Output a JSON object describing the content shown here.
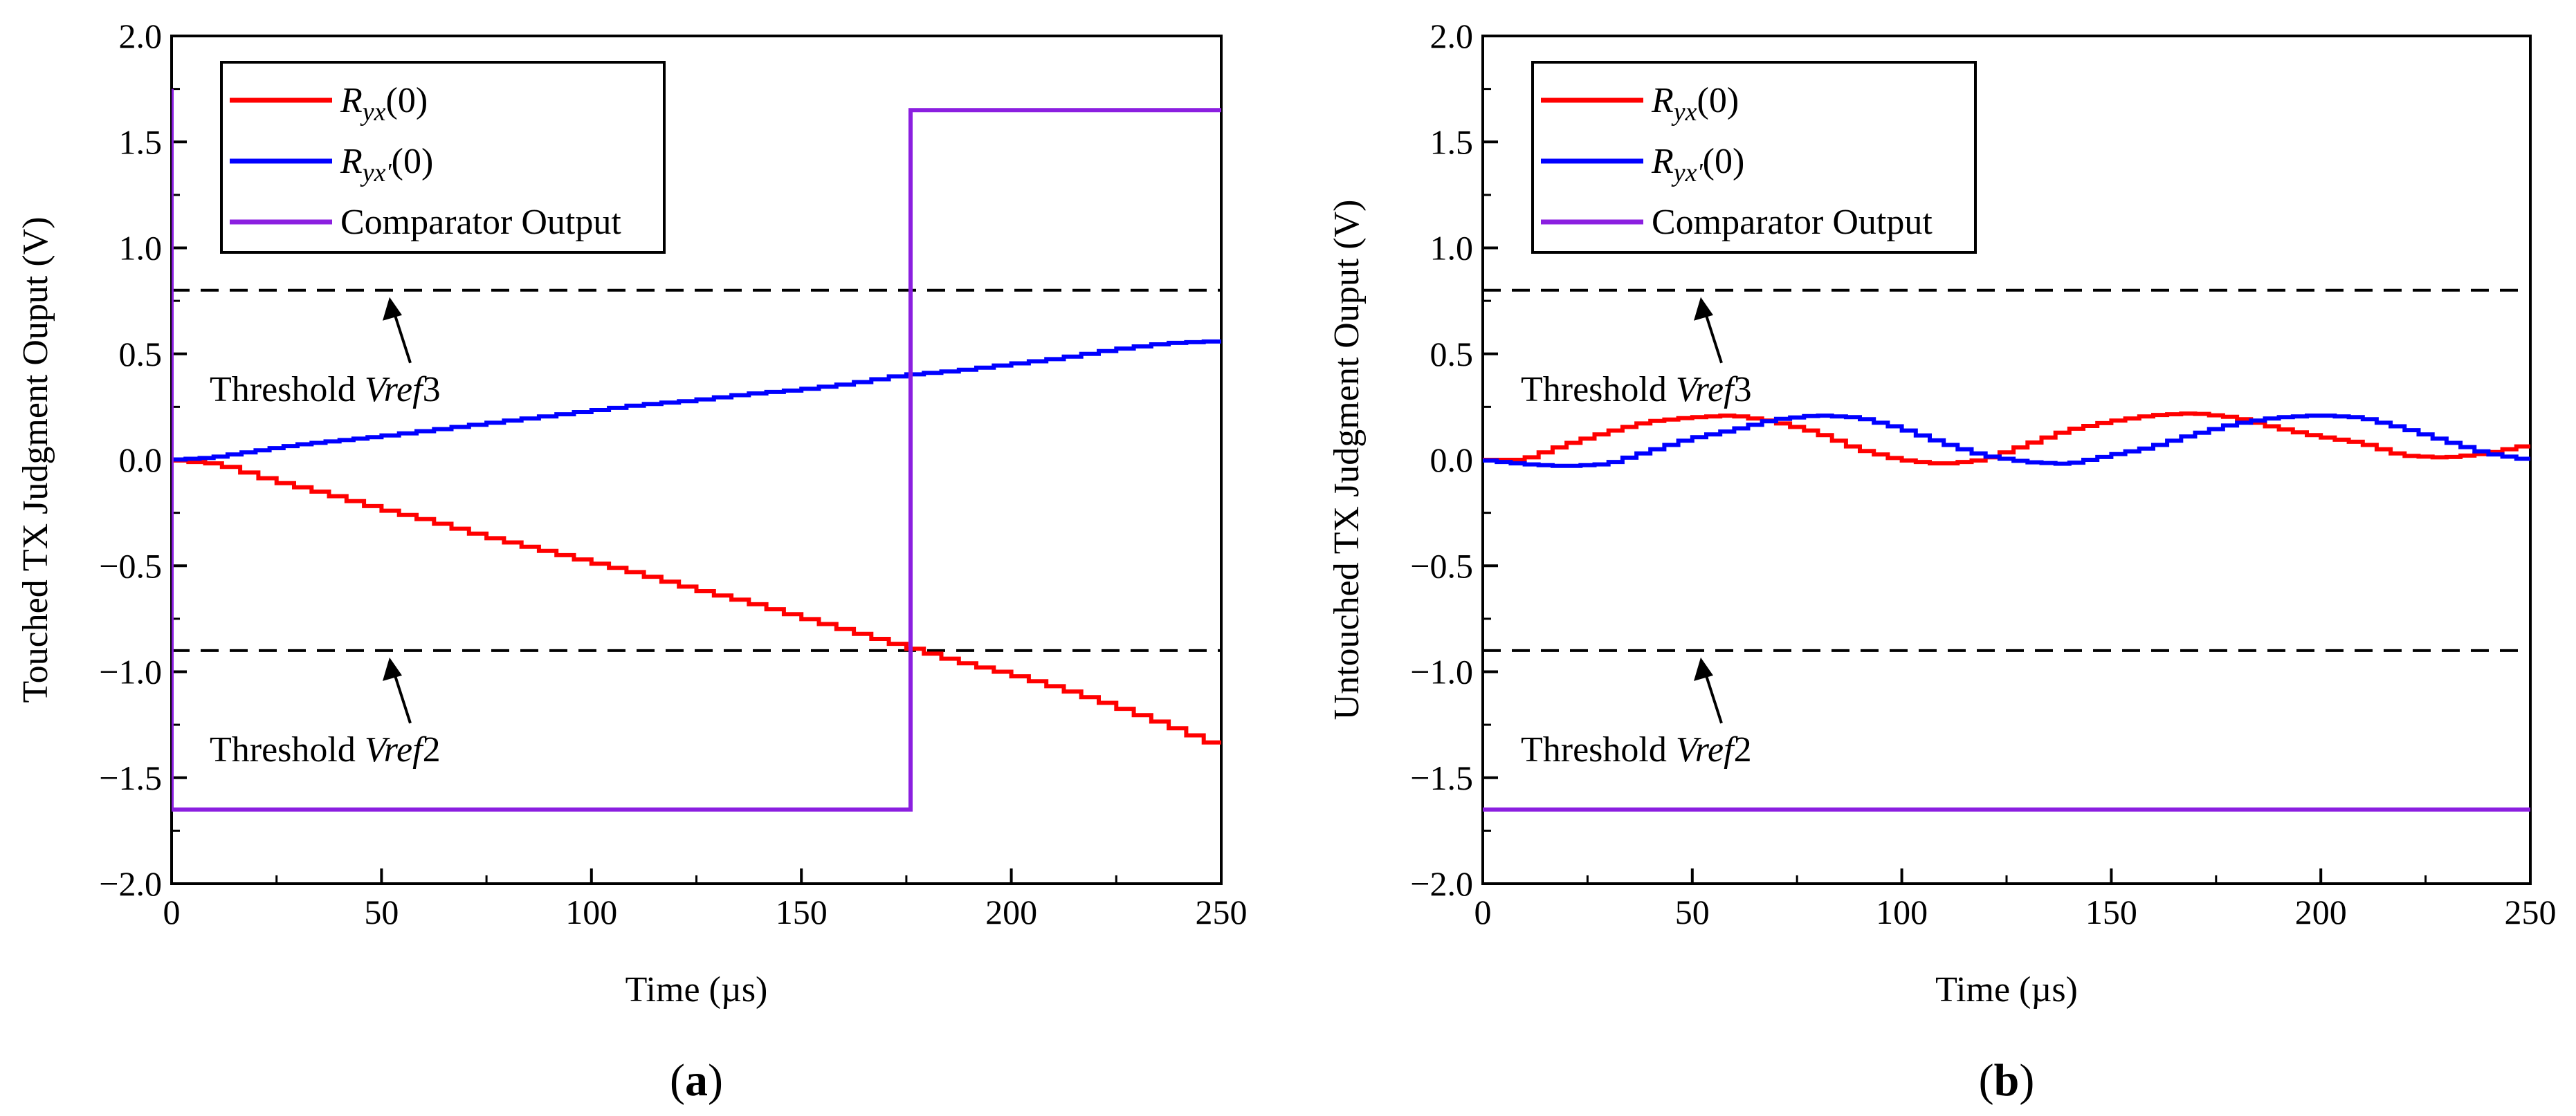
{
  "chart_data": [
    {
      "type": "line",
      "panel_label": "(a)",
      "xlabel": "Time (µs)",
      "ylabel": "Touched TX Judgment Ouput (V)",
      "xlim": [
        0,
        250
      ],
      "ylim": [
        -2.0,
        2.0
      ],
      "xticks": [
        0,
        50,
        100,
        150,
        200,
        250
      ],
      "xtick_labels": [
        "0",
        "50",
        "100",
        "150",
        "200",
        "250"
      ],
      "yticks": [
        -2.0,
        -1.5,
        -1.0,
        -0.5,
        0.0,
        0.5,
        1.0,
        1.5,
        2.0
      ],
      "ytick_labels": [
        "−2.0",
        "−1.5",
        "−1.0",
        "−0.5",
        "0.0",
        "0.5",
        "1.0",
        "1.5",
        "2.0"
      ],
      "legend_position": "top-left",
      "series": [
        {
          "name": "Ryx(0)",
          "legend_base": "R",
          "legend_sub": "yx",
          "legend_tail": "(0)",
          "color": "#ff0000",
          "x": [
            0,
            12,
            25,
            37.5,
            50,
            62.5,
            75,
            87.5,
            100,
            112.5,
            125,
            137.5,
            150,
            162.5,
            175,
            187.5,
            200,
            212.5,
            225,
            237.5,
            250
          ],
          "y": [
            0.0,
            -0.02,
            -0.1,
            -0.16,
            -0.23,
            -0.29,
            -0.36,
            -0.42,
            -0.48,
            -0.54,
            -0.61,
            -0.67,
            -0.74,
            -0.81,
            -0.88,
            -0.95,
            -1.01,
            -1.08,
            -1.16,
            -1.25,
            -1.35
          ]
        },
        {
          "name": "Ryx'(0)",
          "legend_base": "R",
          "legend_sub": "yx'",
          "legend_tail": "(0)",
          "color": "#0000ff",
          "x": [
            0,
            10,
            20,
            30,
            40,
            50,
            62.5,
            75,
            87.5,
            100,
            112.5,
            125,
            137.5,
            150,
            162.5,
            175,
            187.5,
            200,
            212.5,
            225,
            237.5,
            250
          ],
          "y": [
            0.0,
            0.01,
            0.04,
            0.07,
            0.09,
            0.11,
            0.14,
            0.17,
            0.2,
            0.23,
            0.26,
            0.28,
            0.31,
            0.33,
            0.36,
            0.4,
            0.42,
            0.45,
            0.48,
            0.52,
            0.55,
            0.56
          ]
        },
        {
          "name": "Comparator Output",
          "legend_base": "Comparator Output",
          "legend_sub": "",
          "legend_tail": "",
          "color": "#8b1fe0",
          "x": [
            0,
            0,
            176,
            176,
            250
          ],
          "y": [
            1.75,
            -1.65,
            -1.65,
            1.65,
            1.65
          ]
        }
      ],
      "thresholds": [
        {
          "value": 0.8,
          "label_prefix": "Threshold ",
          "label_name": "Vref3"
        },
        {
          "value": -0.9,
          "label_prefix": "Threshold ",
          "label_name": "Vref2"
        }
      ]
    },
    {
      "type": "line",
      "panel_label": "(b)",
      "xlabel": "Time (µs)",
      "ylabel": "Untouched TX Judgment Ouput (V)",
      "xlim": [
        0,
        250
      ],
      "ylim": [
        -2.0,
        2.0
      ],
      "xticks": [
        0,
        50,
        100,
        150,
        200,
        250
      ],
      "xtick_labels": [
        "0",
        "50",
        "100",
        "150",
        "200",
        "250"
      ],
      "yticks": [
        -2.0,
        -1.5,
        -1.0,
        -0.5,
        0.0,
        0.5,
        1.0,
        1.5,
        2.0
      ],
      "ytick_labels": [
        "−2.0",
        "−1.5",
        "−1.0",
        "−0.5",
        "0.0",
        "0.5",
        "1.0",
        "1.5",
        "2.0"
      ],
      "legend_position": "top-left",
      "series": [
        {
          "name": "Ryx(0)",
          "legend_base": "R",
          "legend_sub": "yx",
          "legend_tail": "(0)",
          "color": "#ff0000",
          "x": [
            0,
            10,
            20,
            30,
            40,
            50,
            60,
            70,
            80,
            90,
            100,
            110,
            120,
            130,
            140,
            150,
            160,
            170,
            180,
            190,
            200,
            210,
            220,
            230,
            240,
            250
          ],
          "y": [
            0.0,
            0.0,
            0.07,
            0.13,
            0.18,
            0.2,
            0.21,
            0.18,
            0.13,
            0.05,
            0.0,
            -0.02,
            0.0,
            0.07,
            0.14,
            0.18,
            0.21,
            0.22,
            0.2,
            0.15,
            0.11,
            0.08,
            0.02,
            0.01,
            0.03,
            0.07
          ]
        },
        {
          "name": "Ryx'(0)",
          "legend_base": "R",
          "legend_sub": "yx'",
          "legend_tail": "(0)",
          "color": "#0000ff",
          "x": [
            0,
            10,
            20,
            30,
            40,
            50,
            60,
            70,
            80,
            90,
            100,
            110,
            120,
            130,
            140,
            150,
            160,
            170,
            180,
            190,
            200,
            210,
            220,
            230,
            240,
            250
          ],
          "y": [
            0.0,
            -0.02,
            -0.03,
            -0.02,
            0.04,
            0.1,
            0.14,
            0.19,
            0.21,
            0.2,
            0.15,
            0.08,
            0.02,
            -0.01,
            -0.02,
            0.02,
            0.06,
            0.12,
            0.17,
            0.2,
            0.21,
            0.2,
            0.15,
            0.09,
            0.03,
            0.0
          ]
        },
        {
          "name": "Comparator Output",
          "legend_base": "Comparator Output",
          "legend_sub": "",
          "legend_tail": "",
          "color": "#8b1fe0",
          "x": [
            0,
            250
          ],
          "y": [
            -1.65,
            -1.65
          ]
        }
      ],
      "thresholds": [
        {
          "value": 0.8,
          "label_prefix": "Threshold ",
          "label_name": "Vref3"
        },
        {
          "value": -0.9,
          "label_prefix": "Threshold ",
          "label_name": "Vref2"
        }
      ]
    }
  ]
}
